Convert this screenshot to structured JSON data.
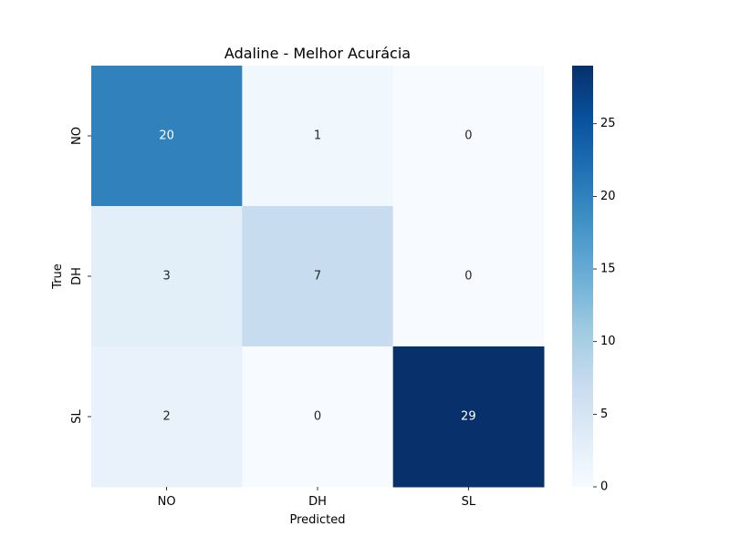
{
  "chart_data": {
    "type": "heatmap",
    "title": "Adaline - Melhor Acurácia",
    "xlabel": "Predicted",
    "ylabel": "True",
    "x_categories": [
      "NO",
      "DH",
      "SL"
    ],
    "y_categories": [
      "NO",
      "DH",
      "SL"
    ],
    "values": [
      [
        20,
        1,
        0
      ],
      [
        3,
        7,
        0
      ],
      [
        2,
        0,
        29
      ]
    ],
    "colormap": "Blues",
    "vmin": 0,
    "vmax": 29,
    "colorbar_ticks": [
      0,
      5,
      10,
      15,
      20,
      25
    ],
    "colorbar_tick_labels": [
      "0",
      "5",
      "10",
      "15",
      "20",
      "25"
    ],
    "grid": false,
    "legend": "colorbar-right"
  }
}
